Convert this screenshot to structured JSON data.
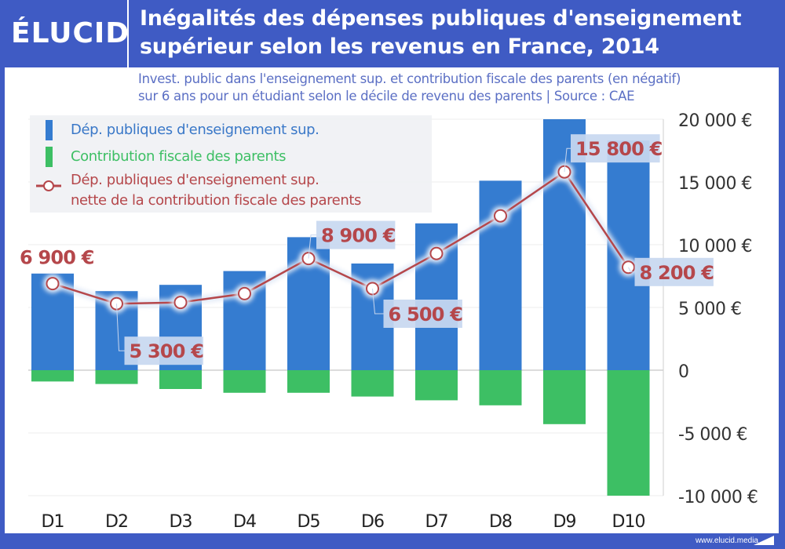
{
  "header": {
    "logo": "ÉLUCID",
    "title_line1": "Inégalités des dépenses publiques d'enseignement",
    "title_line2": "supérieur selon les revenus en France, 2014",
    "subtitle_line1": "Invest. public dans l'enseignement sup. et contribution fiscale des parents (en négatif)",
    "subtitle_line2": "sur 6 ans pour un étudiant selon le décile de revenu des parents  |  Source : CAE"
  },
  "footer": {
    "url": "www.elucid.media"
  },
  "colors": {
    "blue": "#357cd0",
    "green": "#3dbf64",
    "red": "#b5474b",
    "brand": "#3f5bc4"
  },
  "chart_data": {
    "type": "bar",
    "title": "Inégalités des dépenses publiques d'enseignement supérieur selon les revenus en France, 2014",
    "xlabel": "",
    "ylabel": "",
    "ylim": [
      -10000,
      20000
    ],
    "yticks": [
      20000,
      15000,
      10000,
      5000,
      0,
      -5000,
      -10000
    ],
    "ytick_labels": [
      "20 000 €",
      "15 000 €",
      "10 000 €",
      "5 000 €",
      "0",
      "-5 000 €",
      "-10 000 €"
    ],
    "grid": true,
    "legend_position": "top-left",
    "categories": [
      "D1",
      "D2",
      "D3",
      "D4",
      "D5",
      "D6",
      "D7",
      "D8",
      "D9",
      "D10"
    ],
    "series": [
      {
        "name": "Dép. publiques d'enseignement sup.",
        "type": "bar",
        "color": "#357cd0",
        "values": [
          7700,
          6300,
          6800,
          7900,
          10600,
          8500,
          11700,
          15100,
          20300,
          18300
        ]
      },
      {
        "name": "Contribution fiscale des parents",
        "type": "bar",
        "color": "#3dbf64",
        "values": [
          -900,
          -1100,
          -1500,
          -1800,
          -1800,
          -2100,
          -2400,
          -2800,
          -4300,
          -10000
        ]
      },
      {
        "name": "Dép. publiques d'enseignement sup. nette de la contribution fiscale des parents",
        "type": "line",
        "color": "#b5474b",
        "values": [
          6900,
          5300,
          5400,
          6100,
          8900,
          6500,
          9300,
          12300,
          15800,
          8200
        ]
      }
    ],
    "legend": [
      "Dép. publiques d'enseignement sup.",
      "Contribution fiscale des parents",
      "Dép. publiques d'enseignement sup.",
      "nette de la contribution fiscale des parents"
    ],
    "annotations": [
      {
        "index": 0,
        "text": "6 900 €"
      },
      {
        "index": 1,
        "text": "5 300 €"
      },
      {
        "index": 4,
        "text": "8 900 €"
      },
      {
        "index": 5,
        "text": "6 500 €"
      },
      {
        "index": 8,
        "text": "15 800 €"
      },
      {
        "index": 9,
        "text": "8 200 €"
      }
    ]
  }
}
